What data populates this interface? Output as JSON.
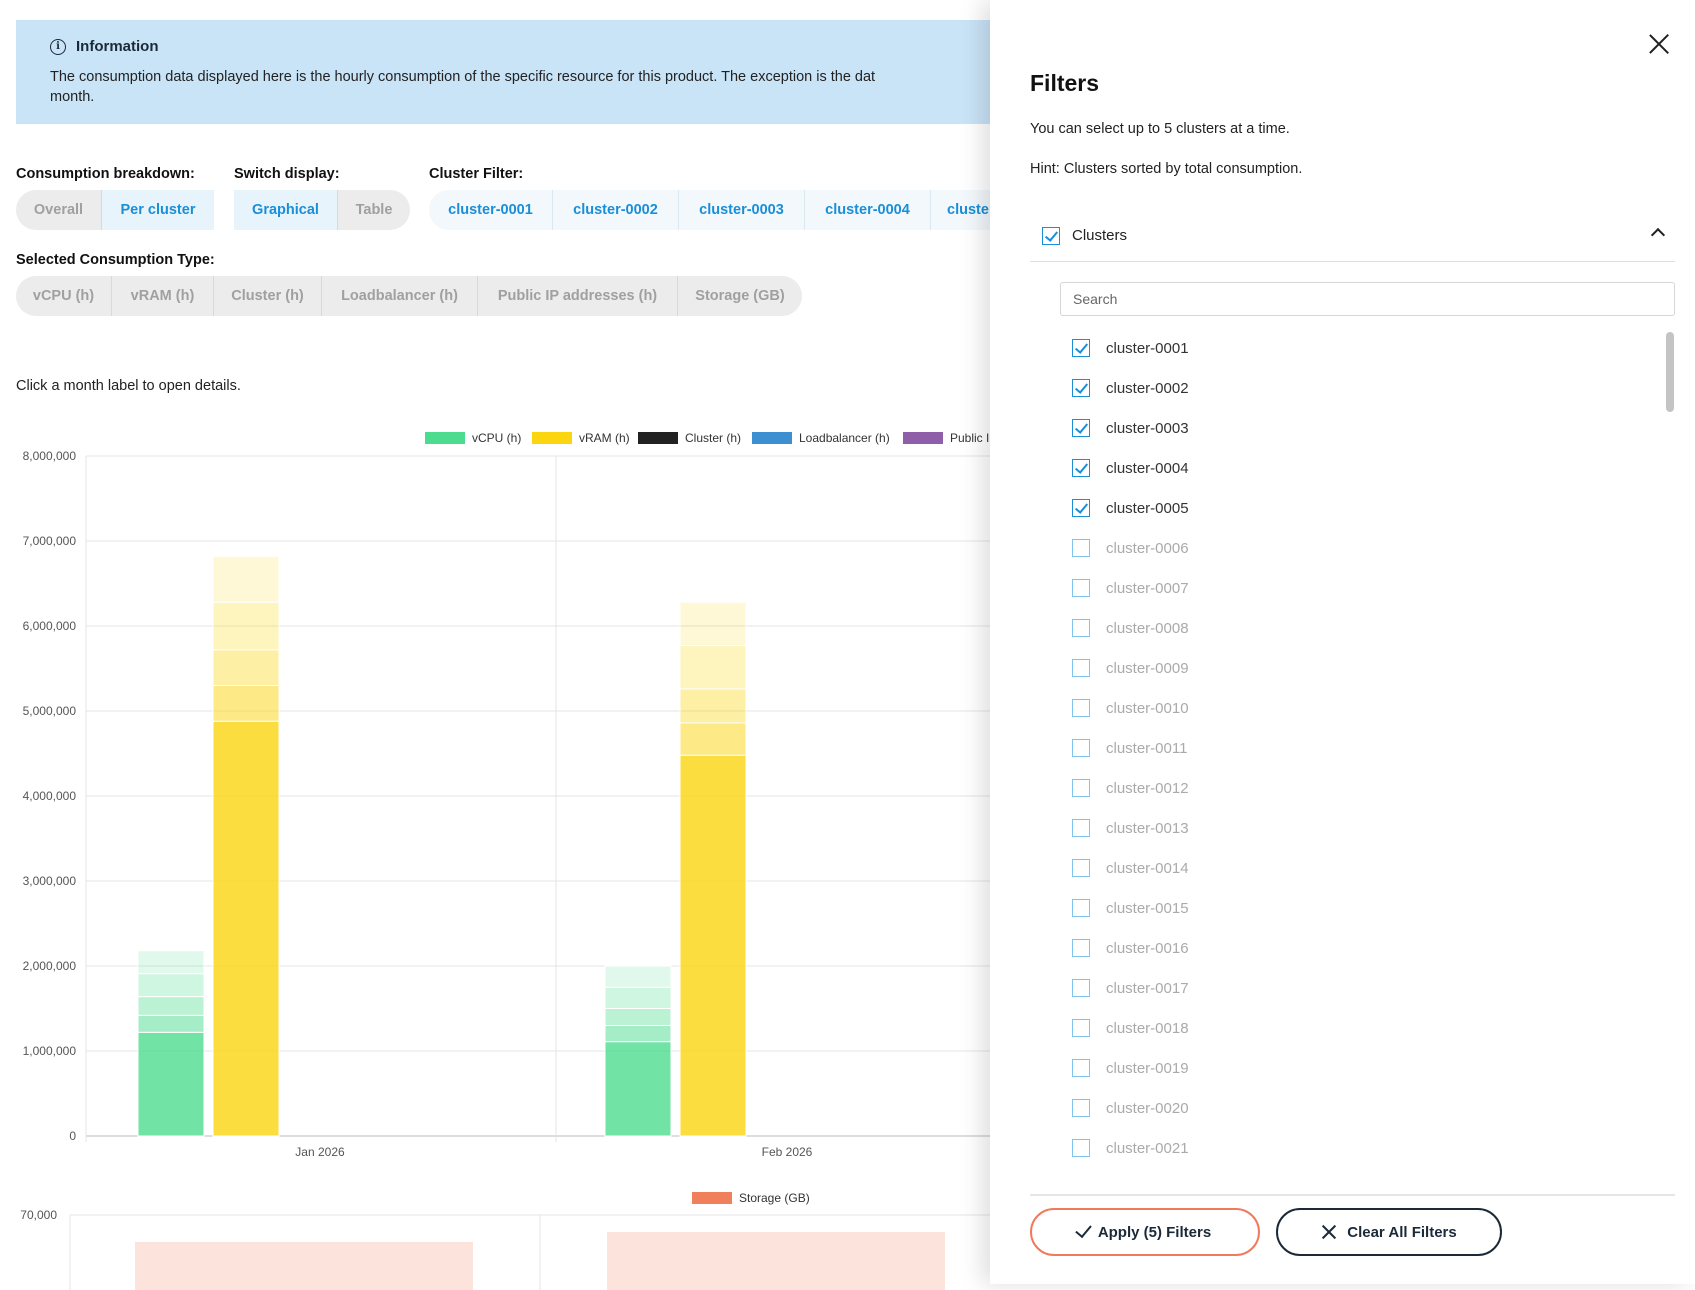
{
  "info": {
    "title": "Information",
    "text": "The consumption data displayed here is the hourly consumption of the specific resource for this product. The exception is the dat\nmonth."
  },
  "breakdown": {
    "label": "Consumption breakdown:",
    "options": [
      "Overall",
      "Per cluster"
    ],
    "active": "Per cluster"
  },
  "display": {
    "label": "Switch display:",
    "options": [
      "Graphical",
      "Table"
    ],
    "active": "Graphical"
  },
  "cluster_filter": {
    "label": "Cluster Filter:",
    "chips": [
      "cluster-0001",
      "cluster-0002",
      "cluster-0003",
      "cluster-0004",
      "cluste"
    ]
  },
  "consumption_type": {
    "label": "Selected Consumption Type:",
    "options": [
      "vCPU (h)",
      "vRAM (h)",
      "Cluster (h)",
      "Loadbalancer (h)",
      "Public IP addresses (h)",
      "Storage (GB)"
    ]
  },
  "hint": "Click a month label to open details.",
  "colors": {
    "vcpu": "#4cdc8f",
    "vram": "#fbd50f",
    "cluster": "#222222",
    "loadbalancer": "#3c8fd0",
    "publicip": "#8e5ea8",
    "storage": "#f0805c",
    "accent": "#1a8fd8",
    "apply_border": "#ef7a5c"
  },
  "chart_data": [
    {
      "type": "bar",
      "stacked": true,
      "legend_position": "top",
      "legend": [
        "vCPU (h)",
        "vRAM (h)",
        "Cluster (h)",
        "Loadbalancer (h)",
        "Public I"
      ],
      "categories": [
        "Jan 2026",
        "Feb 2026"
      ],
      "ylim": [
        0,
        8000000
      ],
      "yticks": [
        "8,000,000",
        "7,000,000",
        "6,000,000",
        "5,000,000",
        "4,000,000",
        "3,000,000",
        "2,000,000",
        "1,000,000",
        "0"
      ],
      "series": [
        {
          "name": "vCPU (h)",
          "stacks": [
            [
              1220000,
              200000,
              220000,
              270000,
              270000
            ],
            [
              1110000,
              190000,
              200000,
              250000,
              250000
            ]
          ]
        },
        {
          "name": "vRAM (h)",
          "stacks": [
            [
              4880000,
              420000,
              420000,
              560000,
              540000
            ],
            [
              4480000,
              380000,
              400000,
              510000,
              510000
            ]
          ]
        }
      ]
    },
    {
      "type": "bar",
      "legend_position": "top",
      "legend": [
        "Storage (GB)"
      ],
      "yticks": [
        "70,000"
      ],
      "series": [
        {
          "name": "Storage (GB)"
        }
      ]
    }
  ],
  "panel": {
    "title": "Filters",
    "desc1": "You can select up to 5 clusters at a time.",
    "desc2": "Hint: Clusters sorted by total consumption.",
    "group_label": "Clusters",
    "search_placeholder": "Search",
    "clusters": [
      {
        "name": "cluster-0001",
        "checked": true
      },
      {
        "name": "cluster-0002",
        "checked": true
      },
      {
        "name": "cluster-0003",
        "checked": true
      },
      {
        "name": "cluster-0004",
        "checked": true
      },
      {
        "name": "cluster-0005",
        "checked": true
      },
      {
        "name": "cluster-0006",
        "checked": false
      },
      {
        "name": "cluster-0007",
        "checked": false
      },
      {
        "name": "cluster-0008",
        "checked": false
      },
      {
        "name": "cluster-0009",
        "checked": false
      },
      {
        "name": "cluster-0010",
        "checked": false
      },
      {
        "name": "cluster-0011",
        "checked": false
      },
      {
        "name": "cluster-0012",
        "checked": false
      },
      {
        "name": "cluster-0013",
        "checked": false
      },
      {
        "name": "cluster-0014",
        "checked": false
      },
      {
        "name": "cluster-0015",
        "checked": false
      },
      {
        "name": "cluster-0016",
        "checked": false
      },
      {
        "name": "cluster-0017",
        "checked": false
      },
      {
        "name": "cluster-0018",
        "checked": false
      },
      {
        "name": "cluster-0019",
        "checked": false
      },
      {
        "name": "cluster-0020",
        "checked": false
      },
      {
        "name": "cluster-0021",
        "checked": false
      }
    ],
    "apply_label": "Apply (5) Filters",
    "clear_label": "Clear All Filters"
  }
}
